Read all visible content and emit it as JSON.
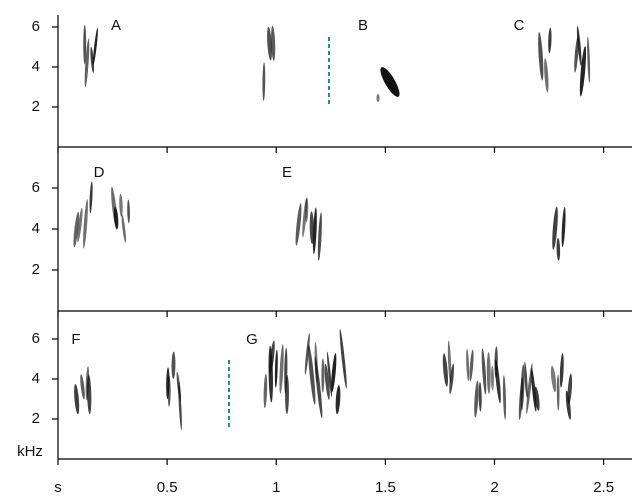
{
  "chart_data": [
    {
      "type": "spectrogram",
      "panel_labels": [
        "A",
        "B",
        "C"
      ],
      "ylim": [
        0,
        6.6
      ],
      "yticks": [
        2,
        4,
        6
      ]
    },
    {
      "type": "spectrogram",
      "panel_labels": [
        "D",
        "E"
      ],
      "ylim": [
        0,
        8
      ],
      "yticks": [
        2,
        4,
        6
      ]
    },
    {
      "type": "spectrogram",
      "panel_labels": [
        "F",
        "G"
      ],
      "ylim": [
        0,
        7.4
      ],
      "yticks": [
        2,
        4,
        6
      ],
      "ylabel": "kHz",
      "xlim": [
        0,
        2.63
      ],
      "xticks": [
        {
          "value": 0,
          "label": "s"
        },
        0.5,
        1,
        1.5,
        2,
        2.5
      ]
    }
  ]
}
